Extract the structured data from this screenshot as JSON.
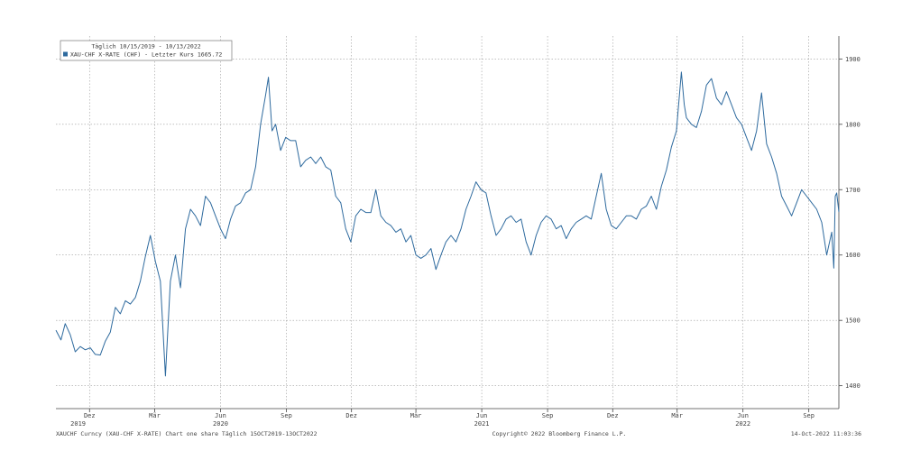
{
  "chart_data": {
    "type": "line",
    "title": "",
    "xlabel": "",
    "ylabel": "",
    "ylim": [
      1365,
      1935
    ],
    "xlim": [
      "2019-10-15",
      "2022-10-13"
    ],
    "grid": true,
    "legend_position": "top-left",
    "line_color": "#2e6a9e",
    "legend": {
      "header": "Täglich 10/15/2019 - 10/13/2022",
      "entry": "XAU-CHF X-RATE (CHF) - Letzter Kurs 1665.72",
      "swatch_color": "#2e6a9e"
    },
    "y_ticks": [
      1400,
      1500,
      1600,
      1700,
      1800,
      1900
    ],
    "x_month_ticks": [
      {
        "label": "Dez",
        "date": "2019-12-01"
      },
      {
        "label": "Mär",
        "date": "2020-03-01"
      },
      {
        "label": "Jun",
        "date": "2020-06-01"
      },
      {
        "label": "Sep",
        "date": "2020-09-01"
      },
      {
        "label": "Dez",
        "date": "2020-12-01"
      },
      {
        "label": "Mär",
        "date": "2021-03-01"
      },
      {
        "label": "Jun",
        "date": "2021-06-01"
      },
      {
        "label": "Sep",
        "date": "2021-09-01"
      },
      {
        "label": "Dez",
        "date": "2021-12-01"
      },
      {
        "label": "Mär",
        "date": "2022-03-01"
      },
      {
        "label": "Jun",
        "date": "2022-06-01"
      },
      {
        "label": "Sep",
        "date": "2022-09-01"
      }
    ],
    "x_year_labels": [
      {
        "label": "2019",
        "date": "2019-11-15"
      },
      {
        "label": "2020",
        "date": "2020-06-01"
      },
      {
        "label": "2021",
        "date": "2021-06-01"
      },
      {
        "label": "2022",
        "date": "2022-06-01"
      }
    ],
    "series": [
      {
        "points": [
          [
            "2019-10-15",
            1485
          ],
          [
            "2019-10-22",
            1470
          ],
          [
            "2019-10-28",
            1495
          ],
          [
            "2019-11-04",
            1478
          ],
          [
            "2019-11-11",
            1452
          ],
          [
            "2019-11-18",
            1460
          ],
          [
            "2019-11-25",
            1455
          ],
          [
            "2019-12-02",
            1458
          ],
          [
            "2019-12-09",
            1448
          ],
          [
            "2019-12-16",
            1447
          ],
          [
            "2019-12-23",
            1468
          ],
          [
            "2019-12-30",
            1482
          ],
          [
            "2020-01-06",
            1520
          ],
          [
            "2020-01-13",
            1510
          ],
          [
            "2020-01-20",
            1530
          ],
          [
            "2020-01-27",
            1525
          ],
          [
            "2020-02-03",
            1535
          ],
          [
            "2020-02-10",
            1560
          ],
          [
            "2020-02-17",
            1598
          ],
          [
            "2020-02-24",
            1630
          ],
          [
            "2020-03-02",
            1590
          ],
          [
            "2020-03-09",
            1560
          ],
          [
            "2020-03-16",
            1415
          ],
          [
            "2020-03-23",
            1560
          ],
          [
            "2020-03-30",
            1600
          ],
          [
            "2020-04-06",
            1550
          ],
          [
            "2020-04-13",
            1640
          ],
          [
            "2020-04-20",
            1670
          ],
          [
            "2020-04-27",
            1660
          ],
          [
            "2020-05-04",
            1645
          ],
          [
            "2020-05-11",
            1690
          ],
          [
            "2020-05-18",
            1680
          ],
          [
            "2020-05-25",
            1660
          ],
          [
            "2020-06-01",
            1640
          ],
          [
            "2020-06-08",
            1625
          ],
          [
            "2020-06-15",
            1655
          ],
          [
            "2020-06-22",
            1675
          ],
          [
            "2020-06-29",
            1680
          ],
          [
            "2020-07-06",
            1695
          ],
          [
            "2020-07-13",
            1700
          ],
          [
            "2020-07-20",
            1735
          ],
          [
            "2020-07-27",
            1800
          ],
          [
            "2020-08-03",
            1845
          ],
          [
            "2020-08-07",
            1872
          ],
          [
            "2020-08-12",
            1790
          ],
          [
            "2020-08-17",
            1800
          ],
          [
            "2020-08-24",
            1760
          ],
          [
            "2020-08-31",
            1780
          ],
          [
            "2020-09-07",
            1775
          ],
          [
            "2020-09-14",
            1775
          ],
          [
            "2020-09-21",
            1735
          ],
          [
            "2020-09-28",
            1745
          ],
          [
            "2020-10-05",
            1750
          ],
          [
            "2020-10-12",
            1740
          ],
          [
            "2020-10-19",
            1750
          ],
          [
            "2020-10-26",
            1735
          ],
          [
            "2020-11-02",
            1730
          ],
          [
            "2020-11-09",
            1690
          ],
          [
            "2020-11-16",
            1680
          ],
          [
            "2020-11-23",
            1640
          ],
          [
            "2020-11-30",
            1620
          ],
          [
            "2020-12-07",
            1660
          ],
          [
            "2020-12-14",
            1670
          ],
          [
            "2020-12-21",
            1665
          ],
          [
            "2020-12-28",
            1665
          ],
          [
            "2021-01-04",
            1700
          ],
          [
            "2021-01-11",
            1660
          ],
          [
            "2021-01-18",
            1650
          ],
          [
            "2021-01-25",
            1645
          ],
          [
            "2021-02-01",
            1635
          ],
          [
            "2021-02-08",
            1640
          ],
          [
            "2021-02-15",
            1620
          ],
          [
            "2021-02-22",
            1630
          ],
          [
            "2021-03-01",
            1600
          ],
          [
            "2021-03-08",
            1595
          ],
          [
            "2021-03-15",
            1600
          ],
          [
            "2021-03-22",
            1610
          ],
          [
            "2021-03-29",
            1578
          ],
          [
            "2021-04-05",
            1600
          ],
          [
            "2021-04-12",
            1620
          ],
          [
            "2021-04-19",
            1630
          ],
          [
            "2021-04-26",
            1620
          ],
          [
            "2021-05-03",
            1640
          ],
          [
            "2021-05-10",
            1670
          ],
          [
            "2021-05-17",
            1690
          ],
          [
            "2021-05-24",
            1712
          ],
          [
            "2021-05-31",
            1700
          ],
          [
            "2021-06-07",
            1695
          ],
          [
            "2021-06-14",
            1660
          ],
          [
            "2021-06-21",
            1630
          ],
          [
            "2021-06-28",
            1640
          ],
          [
            "2021-07-05",
            1655
          ],
          [
            "2021-07-12",
            1660
          ],
          [
            "2021-07-19",
            1650
          ],
          [
            "2021-07-26",
            1655
          ],
          [
            "2021-08-02",
            1620
          ],
          [
            "2021-08-09",
            1600
          ],
          [
            "2021-08-16",
            1630
          ],
          [
            "2021-08-23",
            1650
          ],
          [
            "2021-08-30",
            1660
          ],
          [
            "2021-09-06",
            1655
          ],
          [
            "2021-09-13",
            1640
          ],
          [
            "2021-09-20",
            1645
          ],
          [
            "2021-09-27",
            1625
          ],
          [
            "2021-10-04",
            1640
          ],
          [
            "2021-10-11",
            1650
          ],
          [
            "2021-10-18",
            1655
          ],
          [
            "2021-10-25",
            1660
          ],
          [
            "2021-11-01",
            1655
          ],
          [
            "2021-11-08",
            1690
          ],
          [
            "2021-11-15",
            1725
          ],
          [
            "2021-11-22",
            1670
          ],
          [
            "2021-11-29",
            1645
          ],
          [
            "2021-12-06",
            1640
          ],
          [
            "2021-12-13",
            1650
          ],
          [
            "2021-12-20",
            1660
          ],
          [
            "2021-12-27",
            1660
          ],
          [
            "2022-01-03",
            1655
          ],
          [
            "2022-01-10",
            1670
          ],
          [
            "2022-01-17",
            1675
          ],
          [
            "2022-01-24",
            1690
          ],
          [
            "2022-01-31",
            1670
          ],
          [
            "2022-02-07",
            1705
          ],
          [
            "2022-02-14",
            1730
          ],
          [
            "2022-02-21",
            1765
          ],
          [
            "2022-02-28",
            1790
          ],
          [
            "2022-03-07",
            1880
          ],
          [
            "2022-03-11",
            1830
          ],
          [
            "2022-03-14",
            1810
          ],
          [
            "2022-03-21",
            1800
          ],
          [
            "2022-03-28",
            1795
          ],
          [
            "2022-04-04",
            1820
          ],
          [
            "2022-04-11",
            1860
          ],
          [
            "2022-04-18",
            1870
          ],
          [
            "2022-04-25",
            1840
          ],
          [
            "2022-05-02",
            1830
          ],
          [
            "2022-05-09",
            1850
          ],
          [
            "2022-05-16",
            1830
          ],
          [
            "2022-05-23",
            1810
          ],
          [
            "2022-05-30",
            1800
          ],
          [
            "2022-06-06",
            1780
          ],
          [
            "2022-06-13",
            1760
          ],
          [
            "2022-06-20",
            1790
          ],
          [
            "2022-06-27",
            1848
          ],
          [
            "2022-07-04",
            1770
          ],
          [
            "2022-07-11",
            1750
          ],
          [
            "2022-07-18",
            1725
          ],
          [
            "2022-07-25",
            1690
          ],
          [
            "2022-08-01",
            1675
          ],
          [
            "2022-08-08",
            1660
          ],
          [
            "2022-08-15",
            1680
          ],
          [
            "2022-08-22",
            1700
          ],
          [
            "2022-08-29",
            1690
          ],
          [
            "2022-09-05",
            1680
          ],
          [
            "2022-09-12",
            1670
          ],
          [
            "2022-09-19",
            1650
          ],
          [
            "2022-09-26",
            1600
          ],
          [
            "2022-10-03",
            1635
          ],
          [
            "2022-10-06",
            1580
          ],
          [
            "2022-10-08",
            1690
          ],
          [
            "2022-10-10",
            1695
          ],
          [
            "2022-10-13",
            1666
          ]
        ]
      }
    ]
  },
  "footer": {
    "left": "XAUCHF Curncy (XAU-CHF X-RATE) Chart one share Täglich 15OCT2019-13OCT2022",
    "center": "Copyright© 2022 Bloomberg Finance L.P.",
    "right": "14-Oct-2022 11:03:36"
  }
}
